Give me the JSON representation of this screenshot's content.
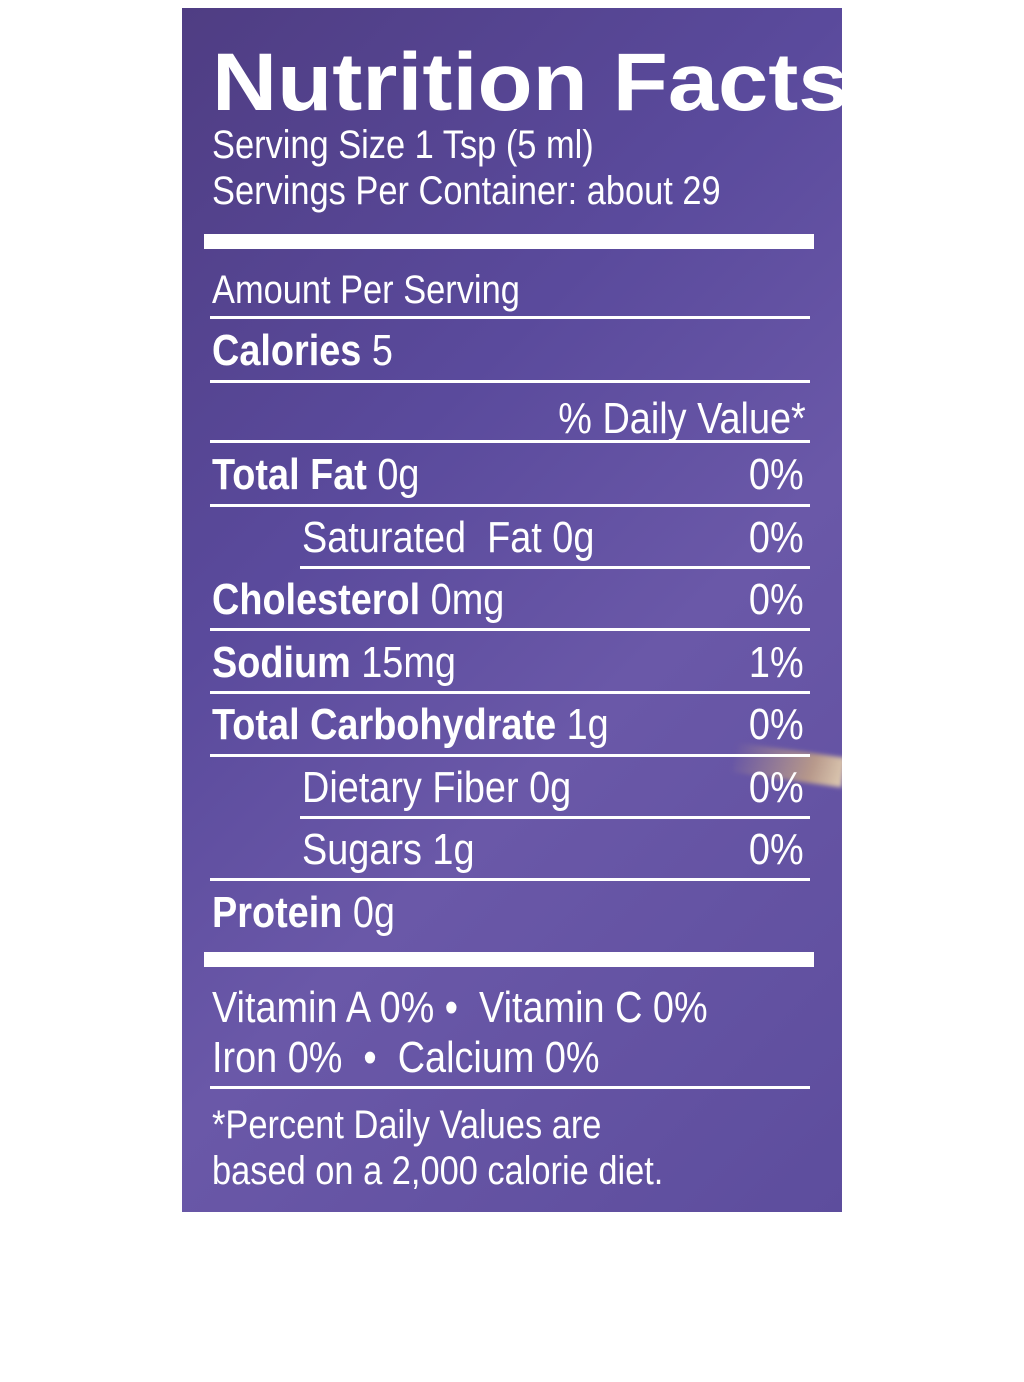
{
  "label": {
    "title": "Nutrition Facts",
    "serving_size": "Serving Size 1 Tsp (5 ml)",
    "servings_per_container": "Servings Per Container: about 29",
    "amount_per_serving": "Amount Per Serving",
    "calories": {
      "label": "Calories",
      "value": "5"
    },
    "daily_value_header": "% Daily Value*",
    "nutrients": [
      {
        "label": "Total Fat",
        "amount": "0g",
        "dv": "0%",
        "bold": true
      },
      {
        "label": "Saturated  Fat 0g",
        "amount": "",
        "dv": "0%",
        "bold": false
      },
      {
        "label": "Cholesterol",
        "amount": "0mg",
        "dv": "0%",
        "bold": true
      },
      {
        "label": "Sodium",
        "amount": "15mg",
        "dv": "1%",
        "bold": true
      },
      {
        "label": "Total Carbohydrate",
        "amount": "1g",
        "dv": "0%",
        "bold": true
      },
      {
        "label": "Dietary Fiber 0g",
        "amount": "",
        "dv": "0%",
        "bold": false
      },
      {
        "label": "Sugars 1g",
        "amount": "",
        "dv": "0%",
        "bold": false
      },
      {
        "label": "Protein",
        "amount": "0g",
        "dv": "",
        "bold": true
      }
    ],
    "vitamins_line1": "Vitamin A 0% •  Vitamin C 0%",
    "vitamins_line2": "Iron 0%  •  Calcium 0%",
    "footnote_line1": "*Percent Daily Values are",
    "footnote_line2": "based on a 2,000 calorie diet."
  },
  "colors": {
    "background": "#5a4a9c",
    "text": "#ffffff"
  }
}
